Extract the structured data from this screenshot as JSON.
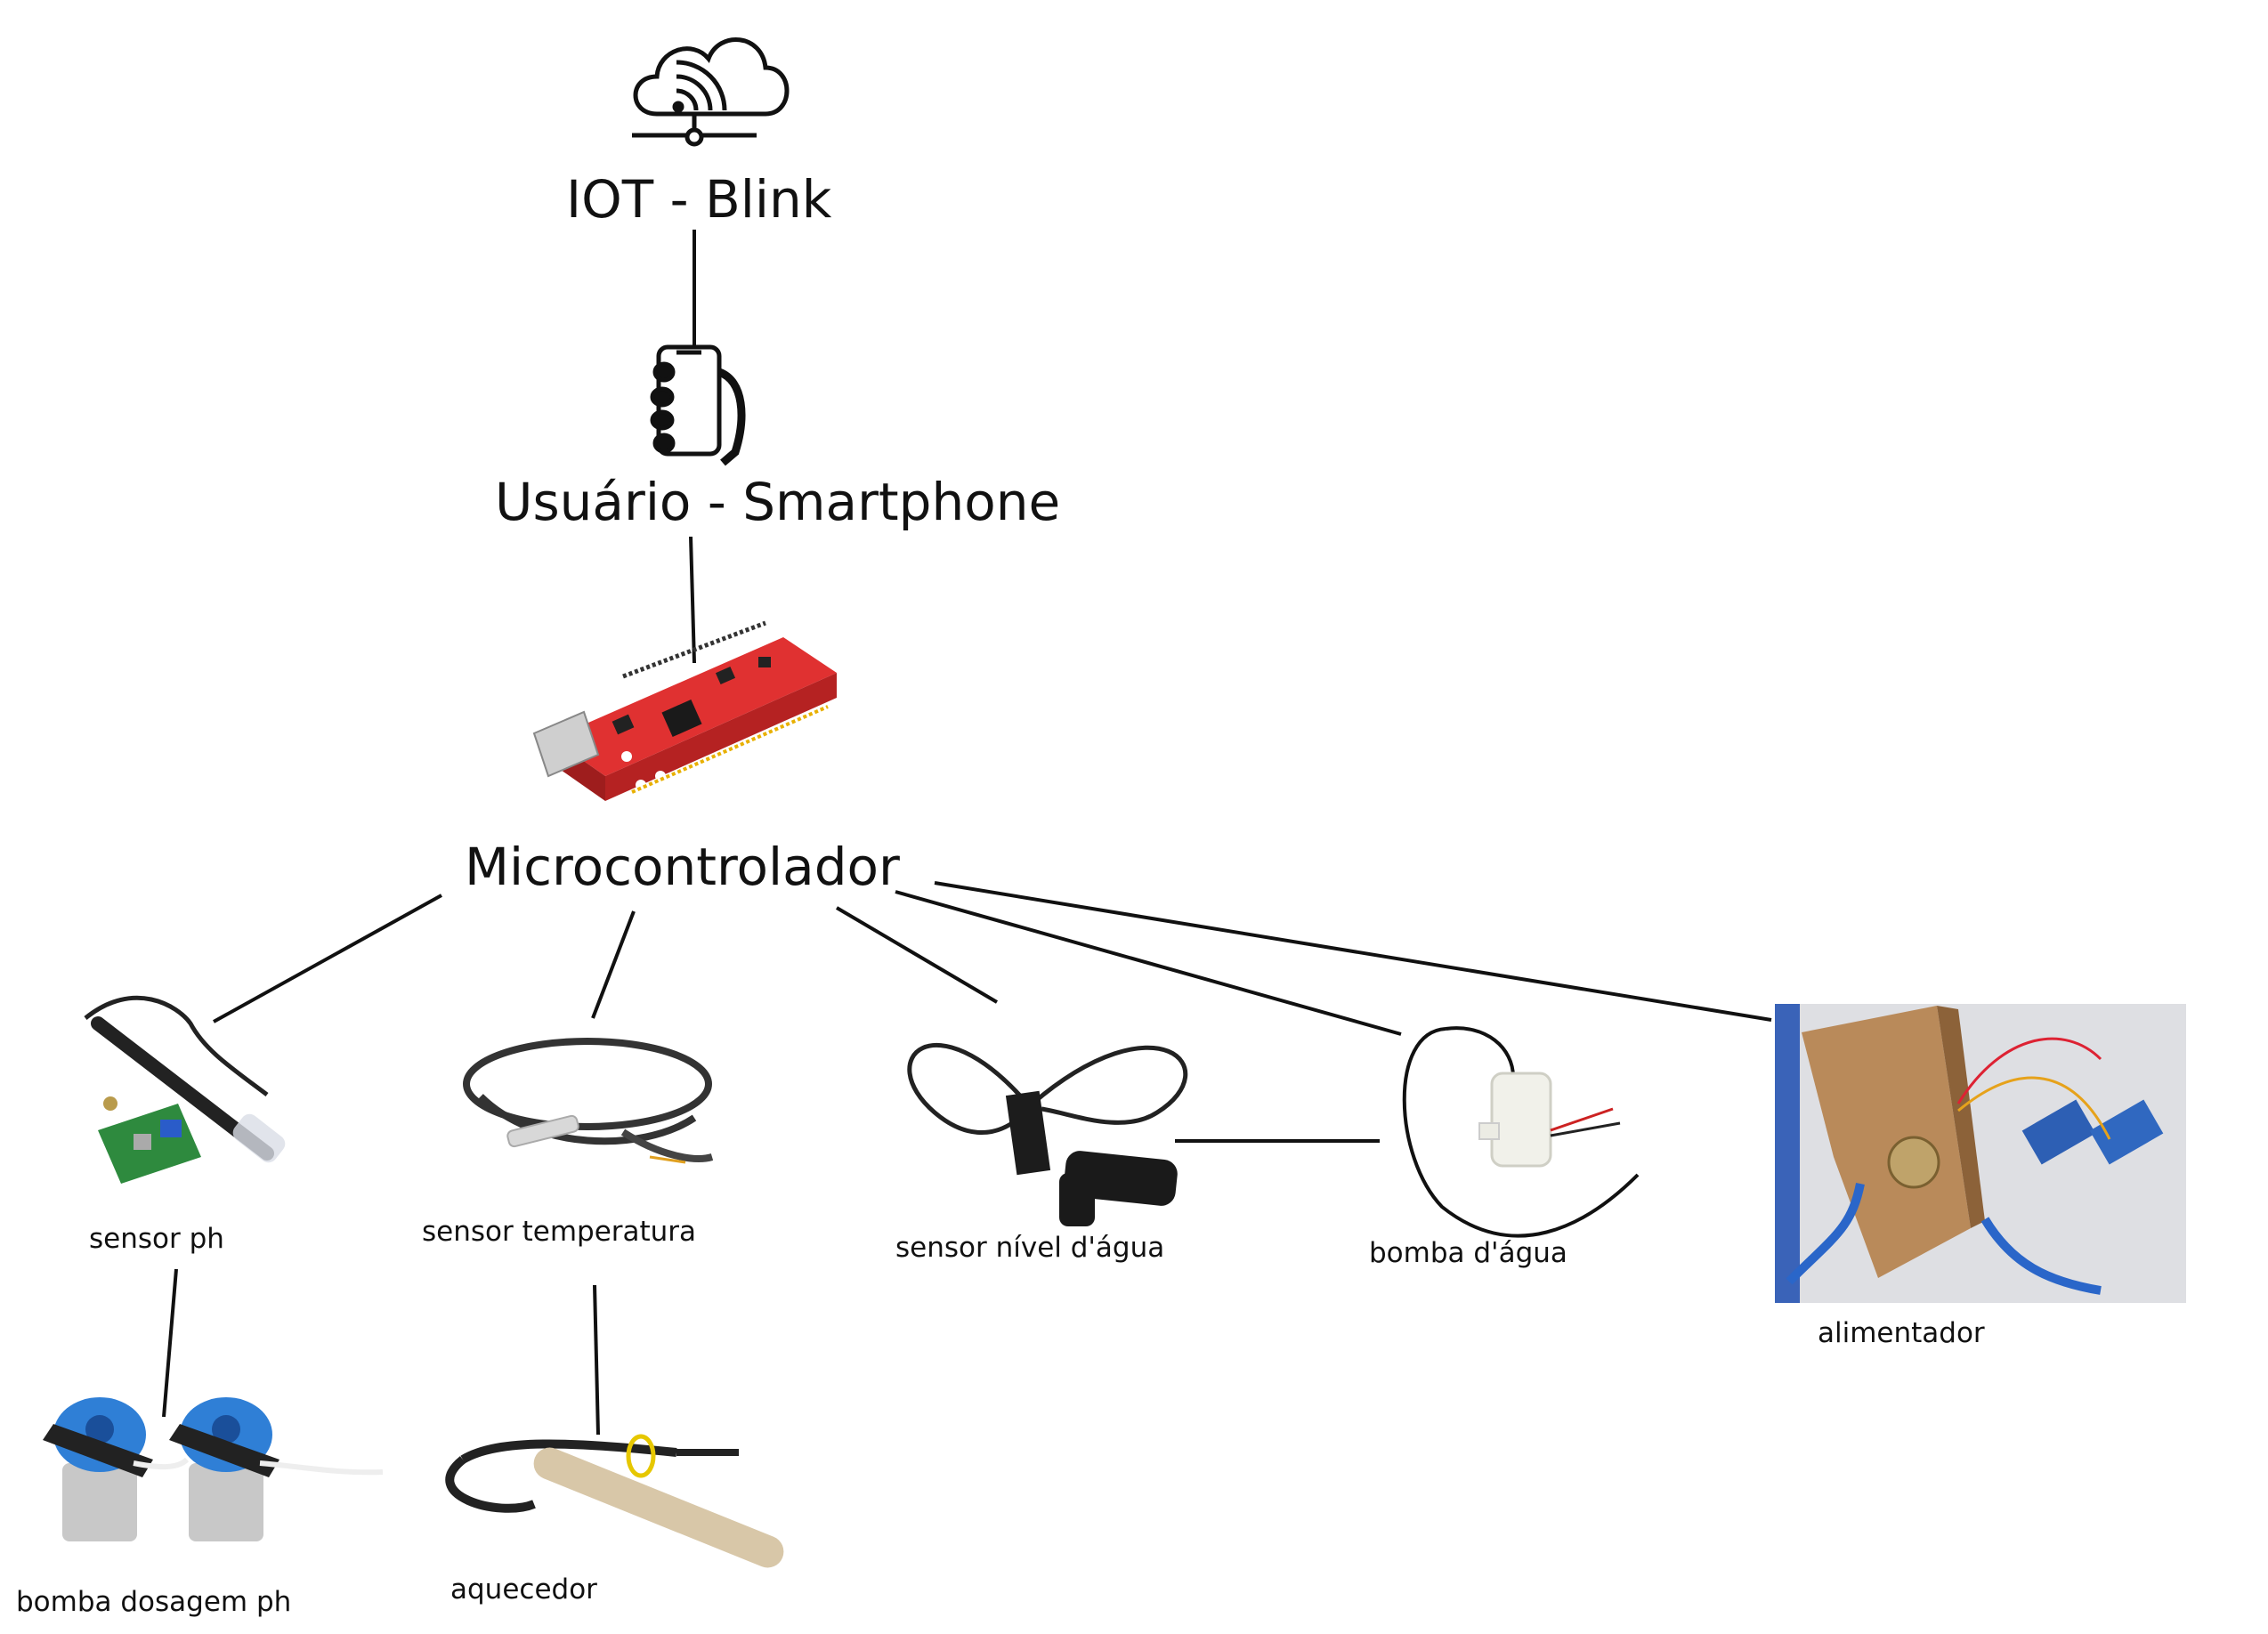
{
  "labels": {
    "iot": "IOT - Blink",
    "user": "Usuário - Smartphone",
    "micro": "Microcontrolador",
    "sensor_ph": "sensor ph",
    "sensor_temp": "sensor temperatura",
    "sensor_level": "sensor nível d'água",
    "water_pump": "bomba d'água",
    "feeder": "alimentador",
    "dosing_pump": "bomba dosagem ph",
    "heater": "aquecedor"
  },
  "icons": {
    "cloud": "cloud-wifi-icon",
    "phone": "smartphone-hand-icon"
  },
  "colors": {
    "line": "#111111",
    "board": "#d62a2a",
    "pump_blue": "#2f7fd6",
    "cardboard": "#b98a5a"
  }
}
